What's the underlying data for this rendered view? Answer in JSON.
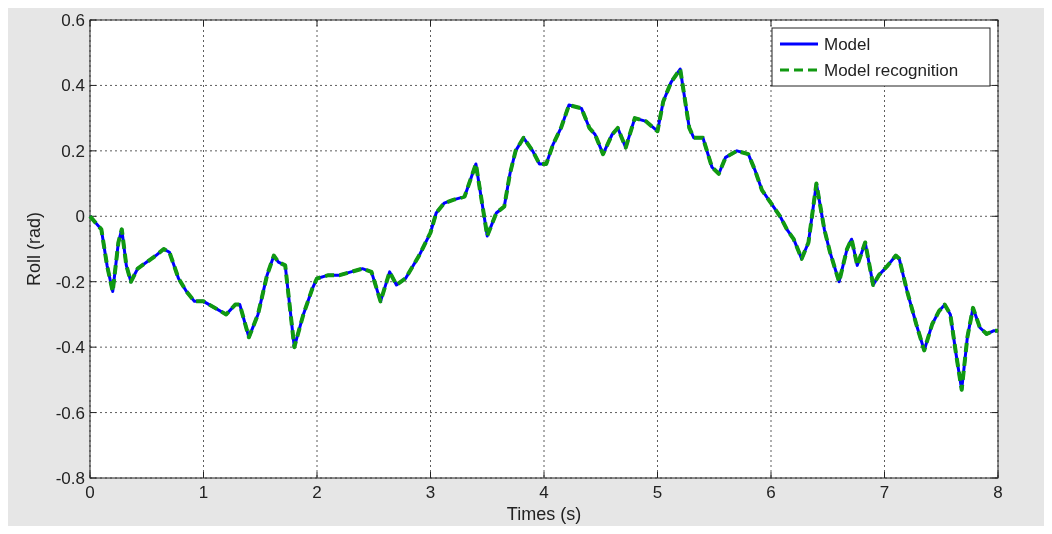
{
  "chart_data": {
    "type": "line",
    "xlabel": "Times (s)",
    "ylabel": "Roll (rad)",
    "xlim": [
      0,
      8
    ],
    "ylim": [
      -0.8,
      0.6
    ],
    "xticks": [
      0,
      1,
      2,
      3,
      4,
      5,
      6,
      7,
      8
    ],
    "yticks": [
      -0.8,
      -0.6,
      -0.4,
      -0.2,
      0,
      0.2,
      0.4,
      0.6
    ],
    "grid": true,
    "legend": "top right",
    "marker": "none",
    "x": [
      0,
      0.1,
      0.15,
      0.2,
      0.25,
      0.28,
      0.32,
      0.36,
      0.42,
      0.5,
      0.58,
      0.65,
      0.7,
      0.78,
      0.85,
      0.92,
      1.0,
      1.1,
      1.2,
      1.28,
      1.32,
      1.4,
      1.48,
      1.56,
      1.62,
      1.66,
      1.72,
      1.8,
      1.88,
      1.96,
      2.0,
      2.1,
      2.2,
      2.3,
      2.4,
      2.48,
      2.56,
      2.64,
      2.7,
      2.78,
      2.9,
      3.0,
      3.05,
      3.12,
      3.2,
      3.3,
      3.4,
      3.5,
      3.58,
      3.65,
      3.7,
      3.75,
      3.82,
      3.9,
      3.96,
      4.02,
      4.08,
      4.15,
      4.22,
      4.33,
      4.4,
      4.45,
      4.52,
      4.6,
      4.65,
      4.72,
      4.8,
      4.9,
      5.0,
      5.05,
      5.12,
      5.2,
      5.28,
      5.32,
      5.4,
      5.48,
      5.54,
      5.6,
      5.7,
      5.8,
      5.86,
      5.92,
      6.0,
      6.08,
      6.14,
      6.2,
      6.27,
      6.33,
      6.4,
      6.47,
      6.52,
      6.6,
      6.67,
      6.71,
      6.76,
      6.83,
      6.9,
      6.95,
      7.03,
      7.1,
      7.13,
      7.2,
      7.28,
      7.35,
      7.42,
      7.48,
      7.53,
      7.58,
      7.63,
      7.68,
      7.73,
      7.78,
      7.84,
      7.9,
      7.96,
      8.0
    ],
    "series": [
      {
        "name": "Model",
        "color": "#0000ff",
        "line_style": "solid",
        "values": [
          0,
          -0.04,
          -0.15,
          -0.23,
          -0.08,
          -0.04,
          -0.15,
          -0.2,
          -0.16,
          -0.14,
          -0.12,
          -0.1,
          -0.11,
          -0.19,
          -0.23,
          -0.26,
          -0.26,
          -0.28,
          -0.3,
          -0.27,
          -0.27,
          -0.37,
          -0.3,
          -0.18,
          -0.12,
          -0.14,
          -0.15,
          -0.4,
          -0.3,
          -0.22,
          -0.19,
          -0.18,
          -0.18,
          -0.17,
          -0.16,
          -0.17,
          -0.26,
          -0.17,
          -0.21,
          -0.19,
          -0.12,
          -0.05,
          0.01,
          0.04,
          0.05,
          0.06,
          0.16,
          -0.06,
          0.01,
          0.03,
          0.13,
          0.2,
          0.24,
          0.2,
          0.16,
          0.16,
          0.22,
          0.27,
          0.34,
          0.33,
          0.27,
          0.25,
          0.19,
          0.25,
          0.27,
          0.21,
          0.3,
          0.29,
          0.26,
          0.35,
          0.41,
          0.45,
          0.27,
          0.24,
          0.24,
          0.15,
          0.13,
          0.18,
          0.2,
          0.19,
          0.14,
          0.08,
          0.04,
          0,
          -0.04,
          -0.07,
          -0.13,
          -0.08,
          0.1,
          -0.04,
          -0.11,
          -0.2,
          -0.1,
          -0.07,
          -0.15,
          -0.08,
          -0.21,
          -0.18,
          -0.15,
          -0.12,
          -0.13,
          -0.23,
          -0.33,
          -0.41,
          -0.33,
          -0.29,
          -0.27,
          -0.3,
          -0.42,
          -0.53,
          -0.37,
          -0.28,
          -0.34,
          -0.36,
          -0.35,
          -0.35
        ]
      },
      {
        "name": "Model recognition",
        "color": "#119911",
        "line_style": "dashed",
        "values": [
          0,
          -0.04,
          -0.15,
          -0.23,
          -0.08,
          -0.04,
          -0.15,
          -0.2,
          -0.16,
          -0.14,
          -0.12,
          -0.1,
          -0.11,
          -0.19,
          -0.23,
          -0.26,
          -0.26,
          -0.28,
          -0.3,
          -0.27,
          -0.27,
          -0.37,
          -0.3,
          -0.18,
          -0.12,
          -0.14,
          -0.15,
          -0.4,
          -0.3,
          -0.22,
          -0.19,
          -0.18,
          -0.18,
          -0.17,
          -0.16,
          -0.17,
          -0.26,
          -0.17,
          -0.21,
          -0.19,
          -0.12,
          -0.05,
          0.01,
          0.04,
          0.05,
          0.06,
          0.16,
          -0.06,
          0.01,
          0.03,
          0.13,
          0.2,
          0.24,
          0.2,
          0.16,
          0.16,
          0.22,
          0.27,
          0.34,
          0.33,
          0.27,
          0.25,
          0.19,
          0.25,
          0.27,
          0.21,
          0.3,
          0.29,
          0.26,
          0.35,
          0.41,
          0.45,
          0.27,
          0.24,
          0.24,
          0.15,
          0.13,
          0.18,
          0.2,
          0.19,
          0.14,
          0.08,
          0.04,
          0,
          -0.04,
          -0.07,
          -0.13,
          -0.08,
          0.1,
          -0.04,
          -0.11,
          -0.2,
          -0.1,
          -0.07,
          -0.15,
          -0.08,
          -0.21,
          -0.18,
          -0.15,
          -0.12,
          -0.13,
          -0.23,
          -0.33,
          -0.41,
          -0.33,
          -0.29,
          -0.27,
          -0.3,
          -0.42,
          -0.53,
          -0.37,
          -0.28,
          -0.34,
          -0.36,
          -0.35,
          -0.35
        ]
      }
    ]
  }
}
